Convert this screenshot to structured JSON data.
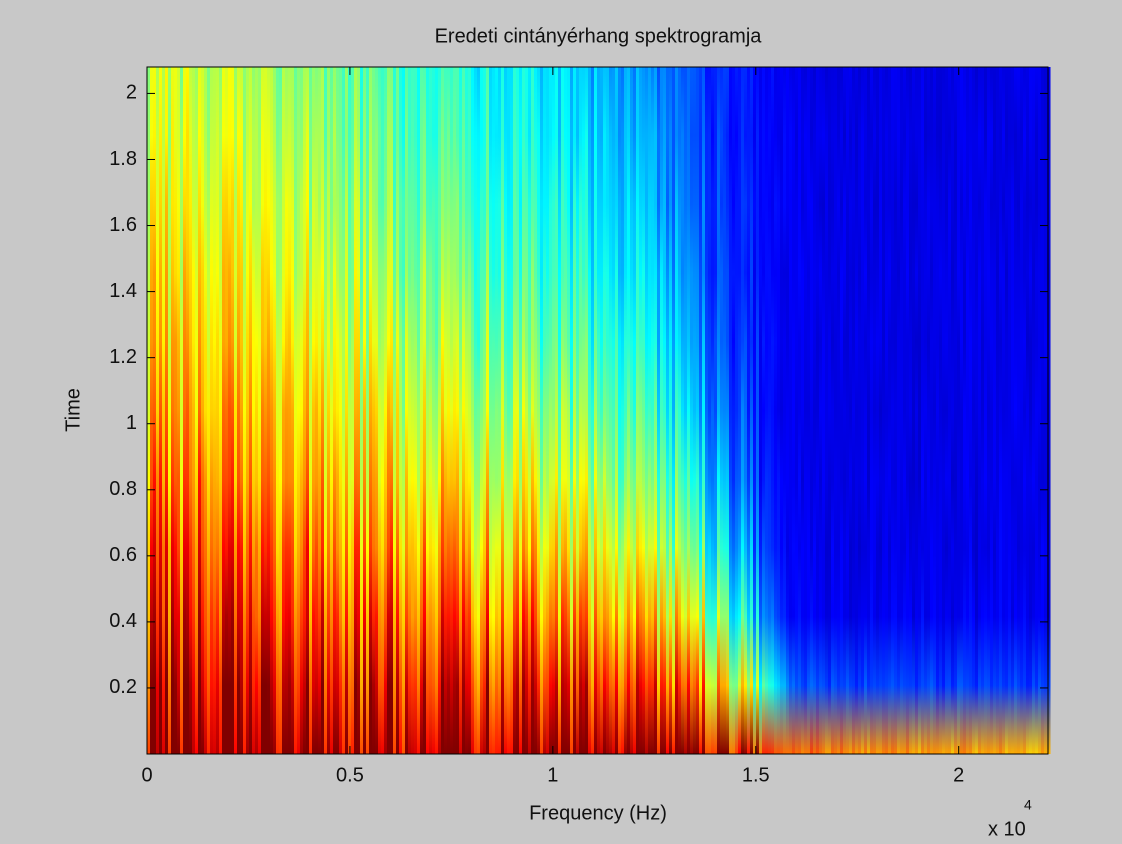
{
  "chart_data": {
    "type": "spectrogram",
    "title": "Eredeti cintányérhang spektrogramja",
    "xlabel": "Frequency (Hz)",
    "ylabel": "Time",
    "x_exponent_base": "x 10",
    "x_exponent": "4",
    "xlim": [
      0,
      22200
    ],
    "xticks": [
      0,
      {
        "value": 5000,
        "label": "0.5"
      },
      {
        "value": 10000,
        "label": "1"
      },
      {
        "value": 15000,
        "label": "1.5"
      },
      {
        "value": 20000,
        "label": "2"
      }
    ],
    "ylim": [
      0,
      2.08
    ],
    "yticks": [
      0.2,
      0.4,
      0.6,
      0.8,
      1,
      1.2,
      1.4,
      1.6,
      1.8,
      2
    ],
    "colormap": "jet"
  }
}
